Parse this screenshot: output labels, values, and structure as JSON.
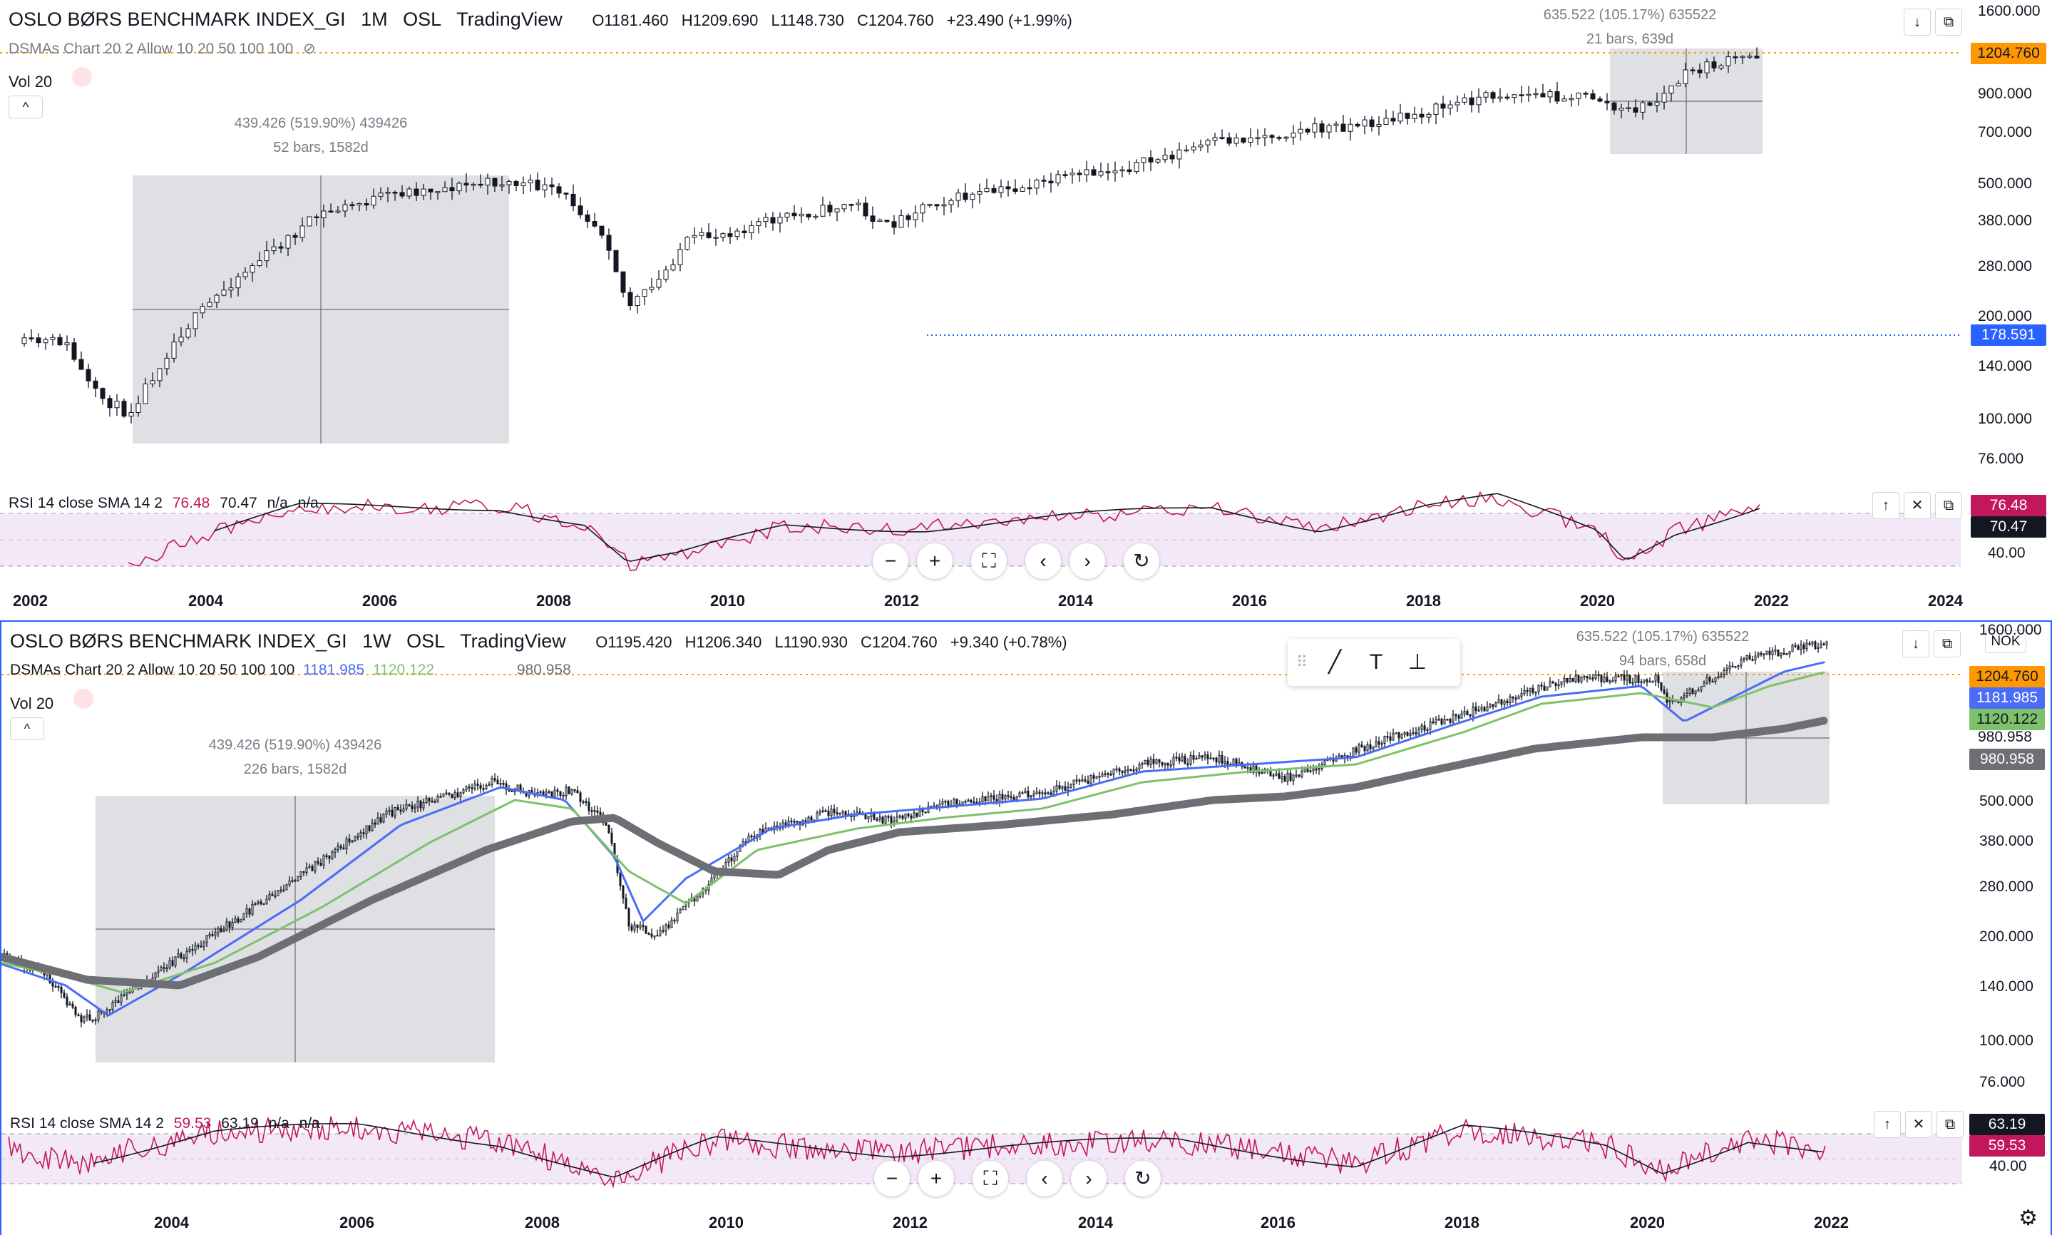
{
  "colors": {
    "candle": "#131722",
    "price_line": "#ff9800",
    "ma_blue": "#4a6cf7",
    "ma_green": "#7ec16b",
    "ma_gray": "#6e6f75",
    "rsi_line": "#c2185b",
    "rsi_sma": "#131722",
    "rsi_band": "#f3e8f8",
    "measure_box": "#d9dade",
    "blue_line": "#2962ff"
  },
  "pane1": {
    "symbol": "OSLO BØRS BENCHMARK INDEX_GI",
    "interval": "1M",
    "exchange": "OSL",
    "source": "TradingView",
    "ohlc": {
      "o": "O1181.460",
      "h": "H1209.690",
      "l": "L1148.730",
      "c": "C1204.760",
      "chg": "+23.490 (+1.99%)"
    },
    "indicator_line": "DSMAs Chart 20 2 Allow 10 20 50 100 100",
    "vol_label": "Vol 20",
    "warn": "!",
    "collapse": "^",
    "rsi": {
      "label": "RSI 14 close SMA 14 2",
      "v1": "76.48",
      "v2": "70.47",
      "v3": "n/a",
      "v4": "n/a"
    },
    "measure_left": {
      "line1": "439.426 (519.90%) 439426",
      "line2": "52 bars, 1582d"
    },
    "measure_right": {
      "line1": "635.522 (105.17%) 635522",
      "line2": "21 bars, 639d"
    },
    "price_axis": [
      "1600.000",
      "900.000",
      "700.000",
      "500.000",
      "380.000",
      "280.000",
      "200.000",
      "140.000",
      "100.000",
      "76.000"
    ],
    "price_tags": {
      "last": "1204.760",
      "blue": "178.591"
    },
    "rsi_axis": {
      "v1": "76.48",
      "v2": "70.47",
      "v3": "40.00"
    },
    "time_axis": [
      "2002",
      "2004",
      "2006",
      "2008",
      "2010",
      "2012",
      "2014",
      "2016",
      "2018",
      "2020",
      "2022",
      "2024"
    ]
  },
  "pane2": {
    "symbol": "OSLO BØRS BENCHMARK INDEX_GI",
    "interval": "1W",
    "exchange": "OSL",
    "source": "TradingView",
    "ohlc": {
      "o": "O1195.420",
      "h": "H1206.340",
      "l": "L1190.930",
      "c": "C1204.760",
      "chg": "+9.340 (+0.78%)"
    },
    "indicator_line": "DSMAs Chart 20 2 Allow 10 20 50 100 100",
    "ma_values": {
      "blue": "1181.985",
      "green": "1120.122",
      "gray": "980.958"
    },
    "vol_label": "Vol 20",
    "warn": "!",
    "collapse": "^",
    "rsi": {
      "label": "RSI 14 close SMA 14 2",
      "v1": "59.53",
      "v2": "63.19",
      "v3": "n/a",
      "v4": "n/a"
    },
    "measure_left": {
      "line1": "439.426 (519.90%) 439426",
      "line2": "226 bars, 1582d"
    },
    "measure_right": {
      "line1": "635.522 (105.17%) 635522",
      "line2": "94 bars, 658d"
    },
    "price_axis": [
      "1600.000",
      "500.000",
      "380.000",
      "280.000",
      "200.000",
      "140.000",
      "100.000",
      "76.000"
    ],
    "price_tags": {
      "last": "1204.760",
      "blue": "1181.985",
      "green": "1120.122",
      "gray_text": "980.958",
      "gray": "980.958"
    },
    "rsi_axis": {
      "v1": "63.19",
      "v2": "59.53",
      "v3": "40.00"
    },
    "time_axis": [
      "2004",
      "2006",
      "2008",
      "2010",
      "2012",
      "2014",
      "2016",
      "2018",
      "2020",
      "2022"
    ],
    "currency": "NOK"
  },
  "nav_icons": [
    "zoom-out-icon",
    "zoom-in-icon",
    "reset-scale-icon",
    "scroll-left-icon",
    "scroll-right-icon",
    "reset-icon"
  ],
  "nav_glyphs": {
    "zoom_out": "−",
    "zoom_in": "+",
    "fit": "⛶",
    "left": "‹",
    "right": "›",
    "reset": "↻"
  },
  "drawing_toolbar": {
    "grip": "⠿",
    "line": "╱",
    "text": "T",
    "measure": "⊥"
  },
  "pane_controls": {
    "down": "↓",
    "restore": "⧉",
    "up": "↑",
    "close": "✕"
  },
  "gear": "⚙"
}
